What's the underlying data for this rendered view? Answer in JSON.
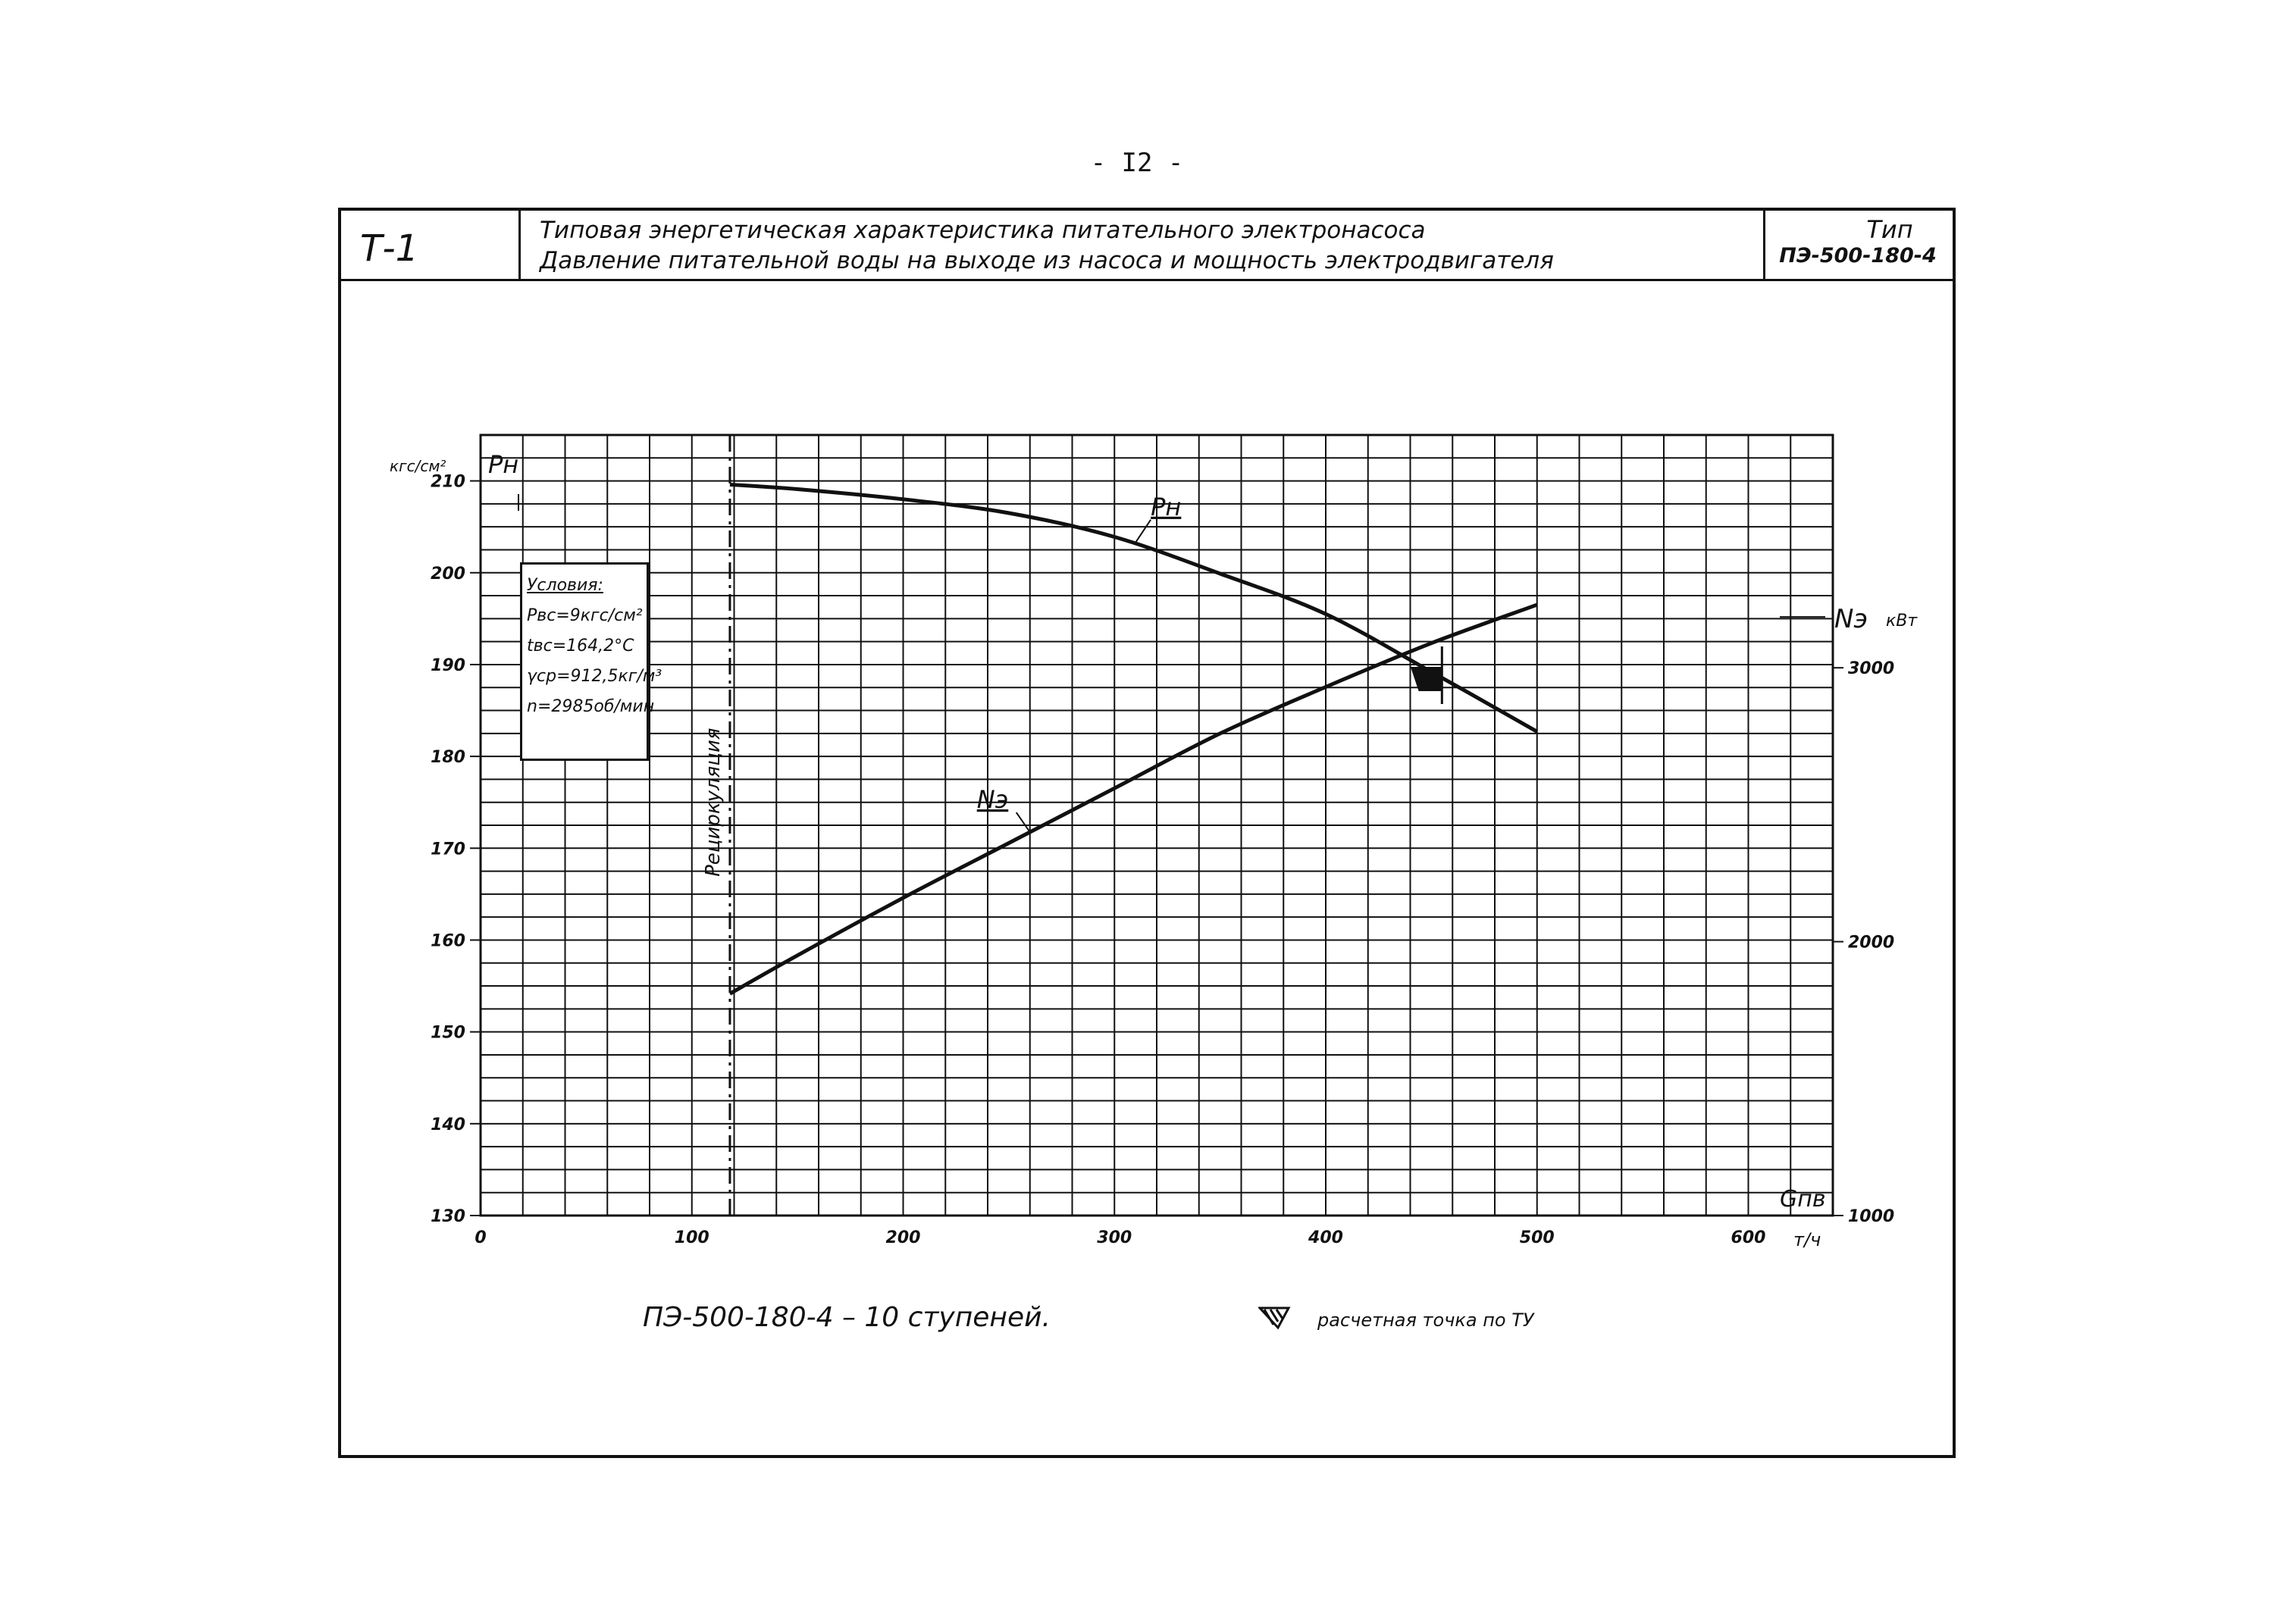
{
  "page_number": "- I2 -",
  "sheet_id": "Т-1",
  "title": {
    "line1": "Типовая энергетическая характеристика питательного электронасоса",
    "line2": "Давление питательной воды на выходе из насоса и мощность электродвигателя"
  },
  "type_block": {
    "label": "Тип",
    "value": "ПЭ-500-180-4"
  },
  "conditions": {
    "title": "Условия:",
    "lines": [
      "Pвс=9кгс/см²",
      "tвс=164,2°С",
      "γср=912,5кг/м³",
      "n=2985об/мин"
    ]
  },
  "footer": {
    "model_text": "ПЭ-500-180-4 – 10 ступеней.",
    "legend_text": "расчетная точка по ТУ"
  },
  "colors": {
    "ink": "#111111",
    "paper": "#ffffff"
  },
  "chart_data": {
    "type": "line",
    "x": {
      "label": "Gпв",
      "unit": "т/ч",
      "range": [
        0,
        640
      ],
      "ticks": [
        0,
        100,
        200,
        300,
        400,
        500,
        600
      ],
      "tick_labels": [
        "0",
        "100",
        "200",
        "300",
        "400",
        "500",
        "600"
      ]
    },
    "y_left": {
      "label": "Pн",
      "unit": "кгс/см²",
      "range": [
        130,
        215
      ],
      "ticks": [
        130,
        140,
        150,
        160,
        170,
        180,
        190,
        200,
        210
      ],
      "tick_labels": [
        "130",
        "140",
        "150",
        "160",
        "170",
        "180",
        "190",
        "200",
        "210"
      ]
    },
    "y_right": {
      "label": "Nэ",
      "unit": "кВт",
      "range": [
        1000,
        3850
      ],
      "ticks": [
        1000,
        2000,
        3000
      ],
      "tick_labels": [
        "1000",
        "2000",
        "3000"
      ]
    },
    "series": [
      {
        "name": "Pн",
        "axis": "left",
        "x": [
          118,
          150,
          200,
          250,
          300,
          350,
          400,
          450,
          500
        ],
        "y": [
          209.6,
          209.1,
          208.0,
          206.5,
          203.9,
          199.9,
          195.5,
          189.2,
          182.7
        ]
      },
      {
        "name": "Nэ",
        "axis": "right",
        "x": [
          118,
          150,
          200,
          250,
          300,
          350,
          400,
          450,
          500
        ],
        "y": [
          1810,
          1950,
          2160,
          2360,
          2560,
          2760,
          2930,
          3090,
          3230
        ]
      }
    ],
    "recirculation": {
      "x": 118,
      "label": "Рециркуляция"
    },
    "design_point": {
      "x": 455,
      "y": 189,
      "label": "расчетная точка по ТУ"
    },
    "grid": true
  }
}
